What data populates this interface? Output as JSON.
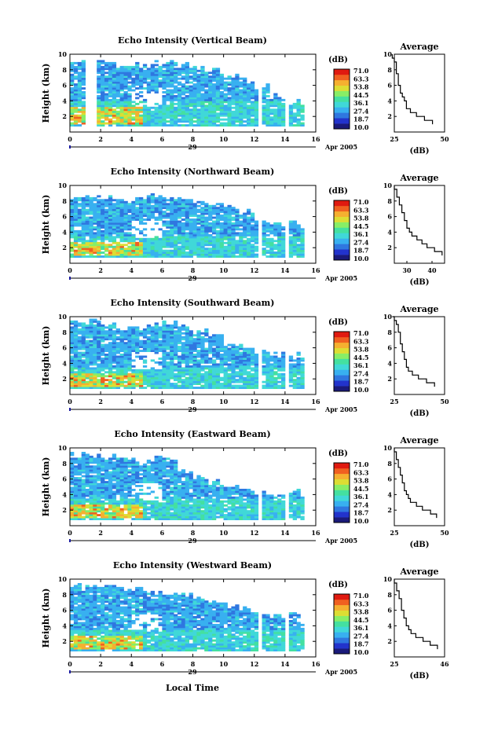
{
  "figure": {
    "xlabel": "Local Time",
    "date_suffix": "Apr 2005",
    "day_label": "29",
    "unit_label": "(dB)",
    "avg_title": "Average",
    "avg_xlabel": "(dB)"
  },
  "colorbar": {
    "ticks": [
      "71.0",
      "63.3",
      "53.8",
      "44.5",
      "36.1",
      "27.4",
      "18.7",
      "10.0"
    ],
    "colors": [
      "#1a1a7a",
      "#2233cc",
      "#2f77e0",
      "#38b0f0",
      "#40d8d8",
      "#44e0a0",
      "#88ee66",
      "#dddd33",
      "#f5b030",
      "#f06020",
      "#e01a10"
    ]
  },
  "chart_data": [
    {
      "type": "heatmap",
      "title": "Echo Intensity (Vertical Beam)",
      "ylabel": "Height (km)",
      "xlim": [
        0,
        16
      ],
      "ylim": [
        0,
        10
      ],
      "xticks": [
        0,
        2,
        4,
        6,
        8,
        10,
        12,
        14,
        16
      ],
      "yticks": [
        2,
        4,
        6,
        8,
        10
      ],
      "clim": [
        10.0,
        71.0
      ],
      "coverage_hours": [
        0,
        15.2
      ],
      "data_gaps_hours": [
        0.8,
        1.7,
        12.1,
        12.4,
        13.8,
        14.1
      ],
      "echo_top_km": [
        9.0,
        9.0,
        8.8,
        8.5,
        8.5,
        8.7,
        8.8,
        8.5,
        8.0,
        7.8,
        7.2,
        6.5,
        5.8,
        4.5,
        3.8,
        3.5
      ],
      "high_intensity_layer_km": [
        1.0,
        3.0
      ],
      "average_profile": {
        "xlim": [
          25,
          50
        ],
        "xticks": [
          25,
          50
        ],
        "yticks": [
          2,
          4,
          6,
          8,
          10
        ],
        "heights_km": [
          1.0,
          1.5,
          2.0,
          2.5,
          3.0,
          3.5,
          4.0,
          4.5,
          5.0,
          5.5,
          6.0,
          6.5,
          7.0,
          7.5,
          8.0,
          8.5,
          9.0,
          9.5,
          10.0
        ],
        "values_db": [
          44,
          40,
          36,
          33,
          31,
          31,
          30,
          29,
          28,
          28,
          27,
          27,
          27,
          26,
          26,
          26,
          25,
          24,
          24
        ]
      }
    },
    {
      "type": "heatmap",
      "title": "Echo Intensity (Northward Beam)",
      "ylabel": "Height (km)",
      "xlim": [
        0,
        16
      ],
      "ylim": [
        0,
        10
      ],
      "xticks": [
        0,
        2,
        4,
        6,
        8,
        10,
        12,
        14,
        16
      ],
      "yticks": [
        2,
        4,
        6,
        8,
        10
      ],
      "clim": [
        10.0,
        71.0
      ],
      "coverage_hours": [
        0,
        15.2
      ],
      "data_gaps_hours": [
        12.1,
        12.4,
        13.8,
        14.1
      ],
      "echo_top_km": [
        8.5,
        8.5,
        8.3,
        8.0,
        8.3,
        8.5,
        8.5,
        8.3,
        8.0,
        7.8,
        7.0,
        6.5,
        5.5,
        5.0,
        5.0,
        4.5
      ],
      "high_intensity_layer_km": [
        1.0,
        2.5
      ],
      "average_profile": {
        "xlim": [
          25,
          45
        ],
        "xticks": [
          30,
          40
        ],
        "yticks": [
          2,
          4,
          6,
          8,
          10
        ],
        "heights_km": [
          1.0,
          1.5,
          2.0,
          2.5,
          3.0,
          3.5,
          4.0,
          4.5,
          5.0,
          5.5,
          6.0,
          6.5,
          7.0,
          7.5,
          8.0,
          8.5,
          9.0,
          9.5,
          10.0
        ],
        "values_db": [
          44,
          41,
          38,
          36,
          34,
          32,
          31,
          30,
          30,
          29,
          29,
          28,
          28,
          27,
          27,
          26,
          26,
          25,
          25
        ]
      }
    },
    {
      "type": "heatmap",
      "title": "Echo Intensity (Southward Beam)",
      "ylabel": "Height (km)",
      "xlim": [
        0,
        16
      ],
      "ylim": [
        0,
        10
      ],
      "xticks": [
        0,
        2,
        4,
        6,
        8,
        10,
        12,
        14,
        16
      ],
      "yticks": [
        2,
        4,
        6,
        8,
        10
      ],
      "clim": [
        10.0,
        71.0
      ],
      "coverage_hours": [
        0,
        15.2
      ],
      "data_gaps_hours": [
        12.1,
        12.4,
        13.8,
        14.1
      ],
      "echo_top_km": [
        9.0,
        9.3,
        8.8,
        8.5,
        8.5,
        8.8,
        9.0,
        8.5,
        8.0,
        7.5,
        6.5,
        6.0,
        5.5,
        5.0,
        5.0,
        4.5
      ],
      "high_intensity_layer_km": [
        1.0,
        2.5
      ],
      "average_profile": {
        "xlim": [
          25,
          50
        ],
        "xticks": [
          25,
          50
        ],
        "yticks": [
          2,
          4,
          6,
          8,
          10
        ],
        "heights_km": [
          1.0,
          1.5,
          2.0,
          2.5,
          3.0,
          3.5,
          4.0,
          4.5,
          5.0,
          5.5,
          6.0,
          6.5,
          7.0,
          7.5,
          8.0,
          8.5,
          9.0,
          9.5,
          10.0
        ],
        "values_db": [
          45,
          41,
          37,
          34,
          32,
          31,
          31,
          30,
          30,
          29,
          29,
          28,
          28,
          28,
          27,
          27,
          26,
          25,
          24
        ]
      }
    },
    {
      "type": "heatmap",
      "title": "Echo Intensity (Eastward Beam)",
      "ylabel": "Height (km)",
      "xlim": [
        0,
        16
      ],
      "ylim": [
        0,
        10
      ],
      "xticks": [
        0,
        2,
        4,
        6,
        8,
        10,
        12,
        14,
        16
      ],
      "yticks": [
        2,
        4,
        6,
        8,
        10
      ],
      "clim": [
        10.0,
        71.0
      ],
      "coverage_hours": [
        0,
        15.2
      ],
      "data_gaps_hours": [
        12.1,
        12.4,
        13.8,
        14.1
      ],
      "echo_top_km": [
        9.0,
        9.0,
        8.8,
        8.5,
        8.3,
        8.5,
        8.5,
        7.0,
        6.0,
        5.5,
        5.0,
        4.5,
        4.0,
        3.8,
        4.5,
        3.5
      ],
      "high_intensity_layer_km": [
        1.0,
        2.5
      ],
      "average_profile": {
        "xlim": [
          25,
          50
        ],
        "xticks": [
          25,
          50
        ],
        "yticks": [
          2,
          4,
          6,
          8,
          10
        ],
        "heights_km": [
          1.0,
          1.5,
          2.0,
          2.5,
          3.0,
          3.5,
          4.0,
          4.5,
          5.0,
          5.5,
          6.0,
          6.5,
          7.0,
          7.5,
          8.0,
          8.5,
          9.0,
          9.5,
          10.0
        ],
        "values_db": [
          46,
          43,
          39,
          36,
          33,
          32,
          31,
          30,
          30,
          29,
          29,
          28,
          28,
          27,
          27,
          26,
          26,
          25,
          25
        ]
      }
    },
    {
      "type": "heatmap",
      "title": "Echo Intensity (Westward Beam)",
      "ylabel": "Height (km)",
      "xlim": [
        0,
        16
      ],
      "ylim": [
        0,
        10
      ],
      "xticks": [
        0,
        2,
        4,
        6,
        8,
        10,
        12,
        14,
        16
      ],
      "yticks": [
        2,
        4,
        6,
        8,
        10
      ],
      "clim": [
        10.0,
        71.0
      ],
      "coverage_hours": [
        0,
        15.2
      ],
      "data_gaps_hours": [
        12.1,
        12.4,
        13.8,
        14.1
      ],
      "echo_top_km": [
        9.0,
        9.3,
        8.8,
        8.5,
        8.5,
        8.3,
        8.0,
        8.0,
        7.5,
        7.0,
        6.5,
        6.0,
        5.5,
        5.0,
        5.5,
        4.5
      ],
      "high_intensity_layer_km": [
        1.0,
        2.5
      ],
      "average_profile": {
        "xlim": [
          25,
          46
        ],
        "xticks": [
          25,
          46
        ],
        "yticks": [
          2,
          4,
          6,
          8,
          10
        ],
        "heights_km": [
          1.0,
          1.5,
          2.0,
          2.5,
          3.0,
          3.5,
          4.0,
          4.5,
          5.0,
          5.5,
          6.0,
          6.5,
          7.0,
          7.5,
          8.0,
          8.5,
          9.0,
          9.5,
          10.0
        ],
        "values_db": [
          43,
          40,
          37,
          34,
          32,
          31,
          30,
          30,
          29,
          29,
          28,
          28,
          28,
          27,
          27,
          26,
          26,
          25,
          25
        ]
      }
    }
  ]
}
